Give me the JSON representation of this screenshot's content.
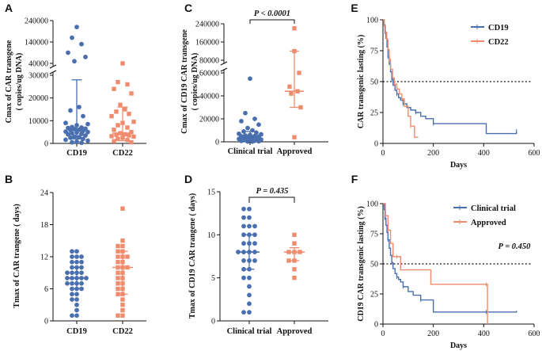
{
  "colors": {
    "blue": "#4A6FAF",
    "orange": "#F08C6E",
    "axis": "#111111"
  },
  "chart_data": [
    {
      "panel": "A",
      "type": "scatter",
      "ylabel": "Cmax of CAR transgene",
      "ylabel2": "( copies/ug DNA)",
      "categories": [
        "CD19",
        "CD22"
      ],
      "yticks_low": [
        "0",
        "10000",
        "20000",
        "30000"
      ],
      "yticks_high": [
        "40000",
        "140000",
        "240000"
      ],
      "series": [
        {
          "name": "CD19",
          "summary": {
            "median": 6500,
            "q1": 2000,
            "q3": 28000
          },
          "values": [
            210000,
            160000,
            130000,
            90000,
            70000,
            50000,
            16000,
            14500,
            12000,
            9000,
            8500,
            8000,
            7200,
            7000,
            6800,
            6500,
            6300,
            6000,
            5800,
            5500,
            5200,
            5000,
            4800,
            4500,
            4200,
            4000,
            3500,
            3000,
            2800,
            2500,
            2000,
            1600,
            1200,
            800,
            500,
            300
          ]
        },
        {
          "name": "CD22",
          "summary": {
            "median": 4500,
            "q1": 1200,
            "q3": 16000
          },
          "values": [
            40000,
            27000,
            26000,
            24000,
            22000,
            17000,
            15000,
            14000,
            13000,
            12000,
            9500,
            9000,
            8000,
            7000,
            6000,
            5000,
            4500,
            4000,
            3800,
            3500,
            3200,
            3000,
            2500,
            2000,
            1500,
            1000,
            500
          ]
        }
      ]
    },
    {
      "panel": "B",
      "type": "scatter",
      "ylabel": "Tmax of CAR trangene ( days)",
      "categories": [
        "CD19",
        "CD22"
      ],
      "yticks": [
        "0",
        "6",
        "12",
        "18",
        "24"
      ],
      "ylim": [
        0,
        24
      ],
      "series": [
        {
          "name": "CD19",
          "summary": {
            "median": 8,
            "q1": 6,
            "q3": 10
          },
          "values": [
            13,
            13,
            12,
            12,
            12,
            11,
            11,
            11,
            10,
            10,
            10,
            9,
            9,
            9,
            9,
            8,
            8,
            8,
            8,
            8,
            7,
            7,
            7,
            7,
            6,
            6,
            6,
            5,
            5,
            4,
            4,
            3,
            2,
            1,
            1
          ]
        },
        {
          "name": "CD22",
          "summary": {
            "median": 10,
            "q1": 5,
            "q3": 13
          },
          "values": [
            21,
            15,
            14,
            14,
            13,
            13,
            12,
            12,
            12,
            11,
            11,
            10,
            10,
            10,
            9,
            9,
            8,
            8,
            7,
            7,
            6,
            6,
            5,
            5,
            4,
            3,
            2,
            1,
            1
          ]
        }
      ]
    },
    {
      "panel": "C",
      "type": "scatter",
      "ylabel": "Cmax of CD19 CAR transgene",
      "ylabel2": "( copies/ug DNA)",
      "categories": [
        "Clinical trial",
        "Approved"
      ],
      "pvalue": "P < 0.0001",
      "yticks_low": [
        "0",
        "20000",
        "40000",
        "60000"
      ],
      "yticks_high": [
        "80000",
        "160000",
        "240000"
      ],
      "series": [
        {
          "name": "Clinical trial",
          "summary": {
            "median": 4000,
            "q1": 1500,
            "q3": 9000
          },
          "values": [
            55000,
            25000,
            20000,
            18000,
            15000,
            12000,
            10000,
            9000,
            8000,
            7000,
            6500,
            6000,
            5500,
            5000,
            4800,
            4500,
            4200,
            4000,
            3500,
            3000,
            2500,
            2000,
            1800,
            1500,
            1000,
            800,
            500,
            300,
            200
          ]
        },
        {
          "name": "Approved",
          "summary": {
            "median": 44000,
            "q1": 30000,
            "q3": 120000
          },
          "values": [
            220000,
            120000,
            60000,
            48000,
            44000,
            42000,
            30000,
            4000
          ]
        }
      ]
    },
    {
      "panel": "D",
      "type": "scatter",
      "ylabel": "Tmax of CD19 CAR trangene ( days)",
      "categories": [
        "Clinical trial",
        "Approved"
      ],
      "pvalue": "P = 0.435",
      "yticks": [
        "0",
        "5",
        "10",
        "15"
      ],
      "ylim": [
        0,
        15
      ],
      "series": [
        {
          "name": "Clinical trial",
          "summary": {
            "median": 8,
            "q1": 6,
            "q3": 10
          },
          "values": [
            13,
            13,
            12,
            12,
            11,
            11,
            11,
            10,
            10,
            10,
            9,
            9,
            9,
            8,
            8,
            8,
            8,
            7,
            7,
            7,
            6,
            6,
            5,
            5,
            4,
            3,
            2,
            1,
            1
          ]
        },
        {
          "name": "Approved",
          "summary": {
            "median": 8,
            "q1": 7,
            "q3": 8.5
          },
          "values": [
            10,
            9,
            8,
            8,
            8,
            7,
            7,
            6,
            5
          ]
        }
      ]
    },
    {
      "panel": "E",
      "type": "line",
      "ylabel": "CAR transgenic lasting (%)",
      "xlabel": "Days",
      "xticks": [
        "0",
        "200",
        "400",
        "600"
      ],
      "xlim": [
        0,
        600
      ],
      "yticks": [
        "0",
        "25",
        "50",
        "75",
        "100"
      ],
      "ylim": [
        0,
        100
      ],
      "reference_line": 50,
      "series": [
        {
          "name": "CD19",
          "x": [
            0,
            5,
            8,
            12,
            16,
            20,
            25,
            30,
            35,
            40,
            48,
            55,
            62,
            70,
            80,
            95,
            110,
            130,
            150,
            170,
            200,
            300,
            410,
            530
          ],
          "y": [
            100,
            96,
            90,
            85,
            78,
            70,
            64,
            58,
            52,
            47,
            43,
            40,
            37,
            35,
            32,
            29,
            27,
            25,
            22,
            20,
            16,
            16,
            8,
            10
          ]
        },
        {
          "name": "CD22",
          "x": [
            0,
            5,
            10,
            15,
            20,
            25,
            30,
            38,
            45,
            55,
            65,
            75,
            85,
            100,
            110,
            125,
            140
          ],
          "y": [
            100,
            95,
            90,
            84,
            76,
            68,
            60,
            53,
            48,
            44,
            40,
            36,
            30,
            22,
            14,
            5,
            5
          ]
        }
      ]
    },
    {
      "panel": "F",
      "type": "line",
      "ylabel": "CD19 CAR transgenic lasting (%)",
      "xlabel": "Days",
      "pvalue": "P = 0.450",
      "xticks": [
        "0",
        "200",
        "400",
        "600"
      ],
      "xlim": [
        0,
        600
      ],
      "yticks": [
        "0",
        "25",
        "50",
        "75",
        "100"
      ],
      "ylim": [
        0,
        100
      ],
      "reference_line": 50,
      "series": [
        {
          "name": "Clinical trial",
          "x": [
            0,
            5,
            8,
            12,
            16,
            20,
            25,
            30,
            35,
            40,
            48,
            55,
            62,
            70,
            80,
            100,
            120,
            150,
            200,
            300,
            410,
            530
          ],
          "y": [
            100,
            95,
            88,
            82,
            76,
            70,
            63,
            57,
            51,
            46,
            42,
            39,
            37,
            35,
            31,
            27,
            24,
            20,
            10,
            10,
            10,
            11
          ]
        },
        {
          "name": "Approved",
          "x": [
            0,
            10,
            20,
            30,
            40,
            55,
            70,
            190,
            410,
            415
          ],
          "y": [
            100,
            90,
            78,
            67,
            56,
            56,
            45,
            33,
            33,
            0
          ]
        }
      ]
    }
  ]
}
